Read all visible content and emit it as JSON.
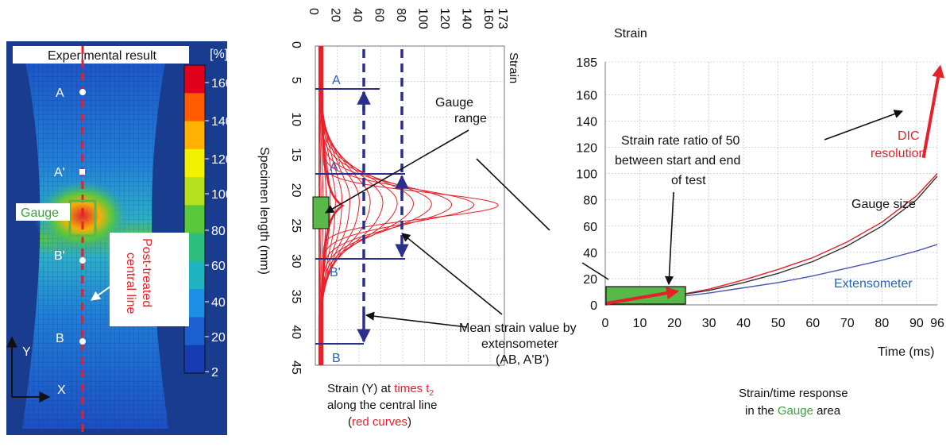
{
  "panel_a": {
    "title": "Experimental result",
    "unit": "[%]",
    "colorbar_ticks": [
      "160",
      "140",
      "120",
      "100",
      "80",
      "60",
      "40",
      "20",
      "2"
    ],
    "colorbar_colors": [
      "#e0001b",
      "#ff5a00",
      "#ffb000",
      "#f2f200",
      "#b6e01b",
      "#59c83c",
      "#2ebf80",
      "#1fb3c0",
      "#1d8fe6",
      "#1b5fd0",
      "#173bb0"
    ],
    "points": [
      "A",
      "A'",
      "B'",
      "B"
    ],
    "gauge_label": "Gauge",
    "central_line_label": [
      "Post-treated",
      "central line"
    ],
    "axis_y": "Y",
    "axis_x": "X"
  },
  "panel_b": {
    "strain_ticks": [
      "0",
      "20",
      "40",
      "60",
      "80",
      "100",
      "120",
      "140",
      "160",
      "173"
    ],
    "strain_label": "Strain",
    "length_ticks": [
      "0",
      "5",
      "10",
      "15",
      "20",
      "25",
      "30",
      "35",
      "40",
      "45"
    ],
    "length_label": "Specimen length (mm)",
    "markers": [
      "A",
      "A'",
      "B'",
      "B"
    ],
    "gauge_range_label": [
      "Gauge",
      "range"
    ],
    "mean_strain_label": [
      "Mean strain value by",
      "extensometer",
      "(AB, A'B')"
    ],
    "caption_line1_a": "Strain (Y) at ",
    "caption_line1_b": "times t",
    "caption_sub": "2",
    "caption_line2": "along the central line",
    "caption_line3_a": "(",
    "caption_line3_b": "red curves",
    "caption_line3_c": ")"
  },
  "colors": {
    "red": "#e8202a",
    "navy": "#2a2f8c",
    "blue_text": "#2a62b8",
    "green": "#3aa040",
    "green_fill": "#58b848"
  },
  "chart_data": {
    "type": "line",
    "title": "",
    "ylabel": "Strain",
    "xlabel": "Time (ms)",
    "xlim": [
      0,
      96
    ],
    "ylim": [
      0,
      185
    ],
    "x_ticks": [
      "0",
      "10",
      "20",
      "30",
      "40",
      "50",
      "60",
      "70",
      "80",
      "90",
      "96"
    ],
    "y_ticks": [
      "0",
      "20",
      "40",
      "60",
      "80",
      "100",
      "120",
      "140",
      "160",
      "185"
    ],
    "series": [
      {
        "name": "DIC resolution",
        "color": "#e8202a",
        "x": [
          0,
          10,
          20,
          30,
          40,
          50,
          60,
          70,
          80,
          90,
          96
        ],
        "y": [
          0,
          3,
          7,
          12,
          19,
          27,
          36,
          48,
          63,
          83,
          100
        ]
      },
      {
        "name": "Gauge size",
        "color": "#333333",
        "x": [
          0,
          10,
          20,
          30,
          40,
          50,
          60,
          70,
          80,
          90,
          96
        ],
        "y": [
          0,
          3,
          7,
          11,
          17,
          24,
          33,
          45,
          60,
          80,
          98
        ]
      },
      {
        "name": "Extensometer",
        "color": "#4a56b0",
        "x": [
          0,
          10,
          20,
          30,
          40,
          50,
          60,
          70,
          80,
          90,
          96
        ],
        "y": [
          0,
          3,
          6,
          9,
          13,
          17,
          22,
          28,
          34,
          41,
          46
        ]
      }
    ],
    "annotations": [
      "Strain rate ratio of 50",
      "between start and end",
      "of test"
    ],
    "caption_line1": "Strain/time response",
    "caption_line2_a": "in the ",
    "caption_line2_b": "Gauge",
    "caption_line2_c": " area"
  }
}
